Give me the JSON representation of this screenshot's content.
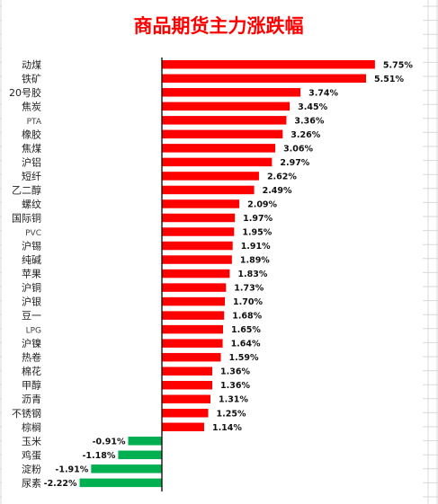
{
  "chart_data": {
    "type": "bar",
    "orientation": "horizontal",
    "title": "商品期货主力涨跌幅",
    "categories": [
      "动煤",
      "铁矿",
      "20号胶",
      "焦炭",
      "PTA",
      "橡胶",
      "焦煤",
      "沪铝",
      "短纤",
      "乙二醇",
      "螺纹",
      "国际铜",
      "PVC",
      "沪锡",
      "纯碱",
      "苹果",
      "沪铜",
      "沪银",
      "豆一",
      "LPG",
      "沪镍",
      "热卷",
      "棉花",
      "甲醇",
      "沥青",
      "不锈钢",
      "棕榈",
      "玉米",
      "鸡蛋",
      "淀粉",
      "尿素"
    ],
    "values": [
      5.75,
      5.51,
      3.74,
      3.45,
      3.36,
      3.26,
      3.06,
      2.97,
      2.62,
      2.49,
      2.09,
      1.97,
      1.95,
      1.91,
      1.89,
      1.83,
      1.73,
      1.7,
      1.68,
      1.65,
      1.64,
      1.59,
      1.36,
      1.36,
      1.31,
      1.25,
      1.14,
      -0.91,
      -1.18,
      -1.91,
      -2.22
    ],
    "value_labels": [
      "5.75%",
      "5.51%",
      "3.74%",
      "3.45%",
      "3.36%",
      "3.26%",
      "3.06%",
      "2.97%",
      "2.62%",
      "2.49%",
      "2.09%",
      "1.97%",
      "1.95%",
      "1.91%",
      "1.89%",
      "1.83%",
      "1.73%",
      "1.70%",
      "1.68%",
      "1.65%",
      "1.64%",
      "1.59%",
      "1.36%",
      "1.36%",
      "1.31%",
      "1.25%",
      "1.14%",
      "-0.91%",
      "-1.18%",
      "-1.91%",
      "-2.22%"
    ],
    "xlabel": "",
    "ylabel": "",
    "xlim": [
      -2.4,
      6.0
    ],
    "grid": false,
    "legend": "none",
    "colors": {
      "positive": "#ff0000",
      "negative": "#00b050",
      "title": "#ff0000",
      "axis": "#000000",
      "sheet_grid": "#d9d9d9"
    }
  }
}
